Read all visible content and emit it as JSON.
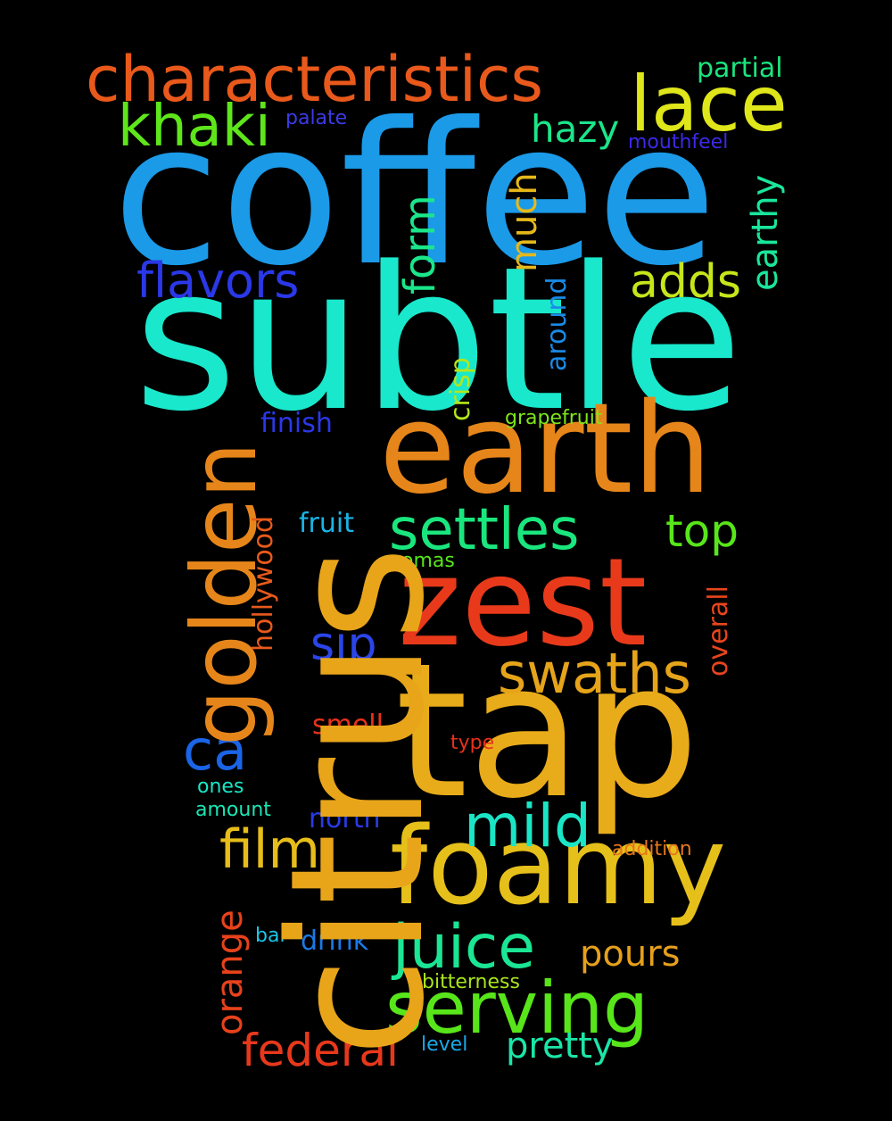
{
  "words": {
    "coffee": {
      "text": "coffee",
      "color": "#1b9ae8"
    },
    "subtle": {
      "text": "subtle",
      "color": "#19e8cc"
    },
    "earth": {
      "text": "earth",
      "color": "#e6861a"
    },
    "citrus": {
      "text": "citrus",
      "color": "#e8a51a"
    },
    "tap": {
      "text": "tap",
      "color": "#e8ab1a"
    },
    "zest": {
      "text": "zest",
      "color": "#e83a1b"
    },
    "foamy": {
      "text": "foamy",
      "color": "#e6c01a"
    },
    "characteristics": {
      "text": "characteristics",
      "color": "#e8591b"
    },
    "lace": {
      "text": "lace",
      "color": "#dfe61a"
    },
    "khaki": {
      "text": "khaki",
      "color": "#5ee61a"
    },
    "golden": {
      "text": "golden",
      "color": "#e6861a"
    },
    "settles": {
      "text": "settles",
      "color": "#1ae67e"
    },
    "serving": {
      "text": "serving",
      "color": "#58e61a"
    },
    "juice": {
      "text": "juice",
      "color": "#1ae694"
    },
    "mild": {
      "text": "mild",
      "color": "#1ae6c6"
    },
    "swaths": {
      "text": "swaths",
      "color": "#e6a41a"
    },
    "flavors": {
      "text": "flavors",
      "color": "#2a38e8"
    },
    "adds": {
      "text": "adds",
      "color": "#c7e61a"
    },
    "film": {
      "text": "film",
      "color": "#e6bd1a"
    },
    "federal": {
      "text": "federal",
      "color": "#e8381b"
    },
    "top": {
      "text": "top",
      "color": "#58e61a"
    },
    "ca": {
      "text": "ca",
      "color": "#1a64e6"
    },
    "sip": {
      "text": "sip",
      "color": "#2a45e8"
    },
    "pours": {
      "text": "pours",
      "color": "#e6a01a"
    },
    "pretty": {
      "text": "pretty",
      "color": "#1ae6a8"
    },
    "hazy": {
      "text": "hazy",
      "color": "#1ae68a"
    },
    "form": {
      "text": "form",
      "color": "#1ae68a"
    },
    "much": {
      "text": "much",
      "color": "#e6b81a"
    },
    "earthy": {
      "text": "earthy",
      "color": "#1ae69b"
    },
    "orange": {
      "text": "orange",
      "color": "#e8421b"
    },
    "partial": {
      "text": "partial",
      "color": "#1ae67e"
    },
    "drink": {
      "text": "drink",
      "color": "#1a7ae6"
    },
    "north": {
      "text": "north",
      "color": "#2a3ae8"
    },
    "finish": {
      "text": "finish",
      "color": "#2a38e8"
    },
    "fruit": {
      "text": "fruit",
      "color": "#1ab4e6"
    },
    "hollywood": {
      "text": "hollywood",
      "color": "#e85a1b"
    },
    "overall": {
      "text": "overall",
      "color": "#e8451b"
    },
    "around": {
      "text": "around",
      "color": "#1a8ae6"
    },
    "crisp": {
      "text": "crisp",
      "color": "#b4e61a"
    },
    "smell": {
      "text": "smell",
      "color": "#e8321b"
    },
    "grapefruit": {
      "text": "grapefruit",
      "color": "#7ee61a"
    },
    "aromas": {
      "text": "aromas",
      "color": "#58e61a"
    },
    "type": {
      "text": "type",
      "color": "#e8301b"
    },
    "addition": {
      "text": "addition",
      "color": "#e6761a"
    },
    "ones": {
      "text": "ones",
      "color": "#1ae6c6"
    },
    "amount": {
      "text": "amount",
      "color": "#1ae6b4"
    },
    "bar": {
      "text": "bar",
      "color": "#1ac6e6"
    },
    "bitterness": {
      "text": "bitterness",
      "color": "#a8e61a"
    },
    "level": {
      "text": "level",
      "color": "#1aa8e6"
    },
    "palate": {
      "text": "palate",
      "color": "#3a3ae8"
    },
    "mouthfeel": {
      "text": "mouthfeel",
      "color": "#3a2ae8"
    }
  }
}
